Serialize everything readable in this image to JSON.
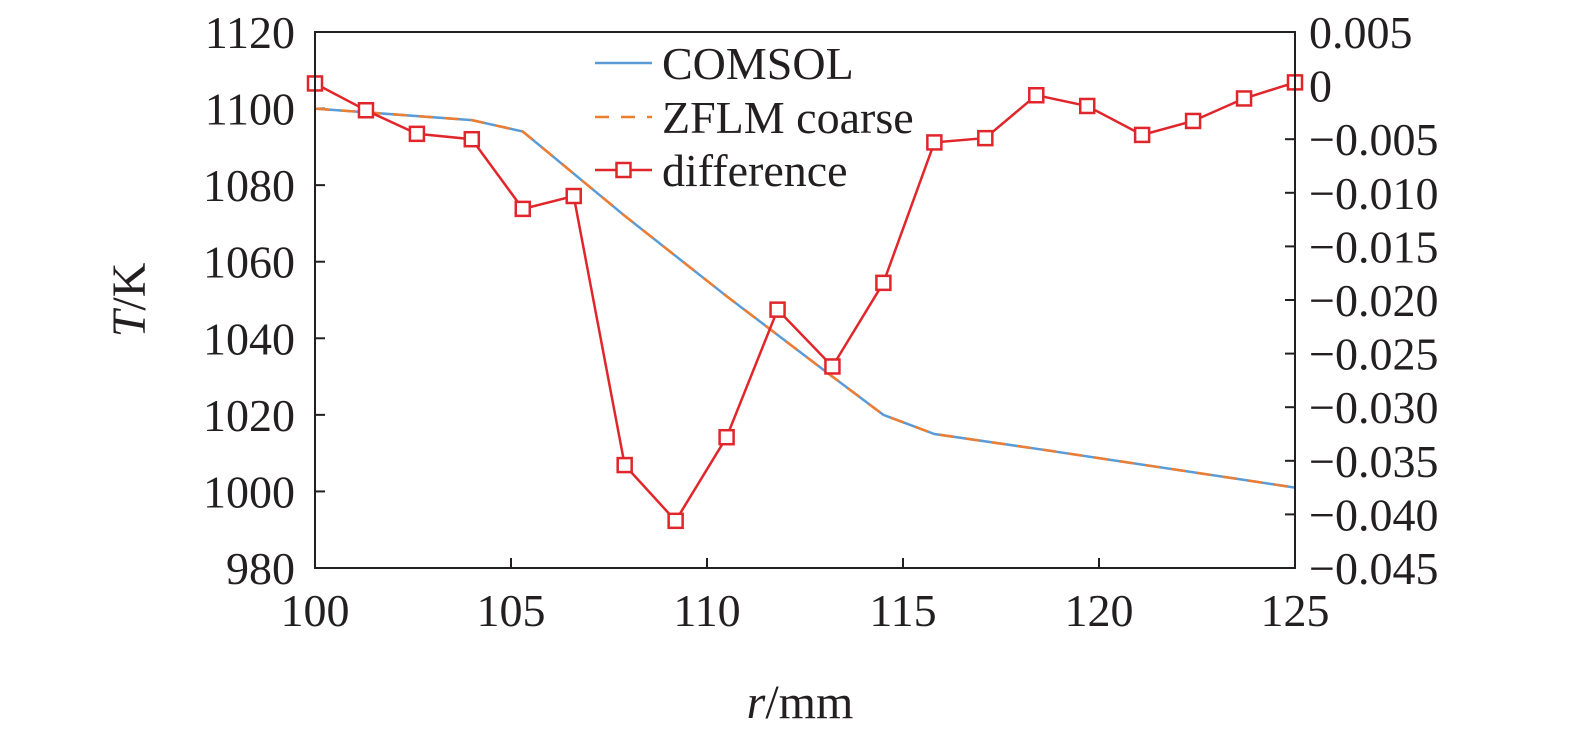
{
  "chart_data": {
    "type": "line",
    "xlabel": {
      "var": "r",
      "unit": "/mm"
    },
    "ylabel": {
      "var": "T",
      "unit": "/K"
    },
    "xlim": [
      100,
      125
    ],
    "ylim": [
      980,
      1120
    ],
    "y2lim": [
      -0.045,
      0.005
    ],
    "x_ticks": [
      100,
      105,
      110,
      115,
      120,
      125
    ],
    "y_ticks": [
      980,
      1000,
      1020,
      1040,
      1060,
      1080,
      1100,
      1120
    ],
    "y2_ticks": [
      {
        "value": 0.005,
        "label": "0.005"
      },
      {
        "value": 0,
        "label": "0"
      },
      {
        "value": -0.005,
        "label": "−0.005"
      },
      {
        "value": -0.01,
        "label": "−0.010"
      },
      {
        "value": -0.015,
        "label": "−0.015"
      },
      {
        "value": -0.02,
        "label": "−0.020"
      },
      {
        "value": -0.025,
        "label": "−0.025"
      },
      {
        "value": -0.03,
        "label": "−0.030"
      },
      {
        "value": -0.035,
        "label": "−0.035"
      },
      {
        "value": -0.04,
        "label": "−0.040"
      },
      {
        "value": -0.045,
        "label": "−0.045"
      }
    ],
    "legend_position": "top-center",
    "series": [
      {
        "name": "COMSOL",
        "axis": "left",
        "color": "#5b9bd5",
        "style": "solid",
        "x": [
          100,
          104,
          105.3,
          107.9,
          110.5,
          113.2,
          114.5,
          115.8,
          118.5,
          121.1,
          123.7,
          125
        ],
        "y": [
          1100,
          1097,
          1094,
          1072,
          1051,
          1030,
          1020,
          1015,
          1011,
          1007,
          1003,
          1001
        ]
      },
      {
        "name": "ZFLM coarse",
        "axis": "left",
        "color": "#ed7d31",
        "style": "dashed",
        "x": [
          100,
          104,
          105.3,
          107.9,
          110.5,
          113.2,
          114.5,
          115.8,
          118.5,
          121.1,
          123.7,
          125
        ],
        "y": [
          1100,
          1097,
          1094,
          1072,
          1051,
          1030,
          1020,
          1015,
          1011,
          1007,
          1003,
          1001
        ]
      },
      {
        "name": "difference",
        "axis": "right",
        "color": "#e0262b",
        "style": "solid",
        "marker": "square",
        "x": [
          100,
          101.3,
          102.6,
          104,
          105.3,
          106.6,
          107.9,
          109.2,
          110.5,
          111.8,
          113.2,
          114.5,
          115.8,
          117.1,
          118.4,
          119.7,
          121.1,
          122.4,
          123.7,
          125
        ],
        "y": [
          0.0002,
          -0.0023,
          -0.0045,
          -0.005,
          -0.0115,
          -0.0103,
          -0.0354,
          -0.0406,
          -0.0328,
          -0.0209,
          -0.0262,
          -0.0184,
          -0.0053,
          -0.0049,
          -0.0009,
          -0.0019,
          -0.0046,
          -0.0033,
          -0.0012,
          0.0003
        ]
      }
    ]
  }
}
